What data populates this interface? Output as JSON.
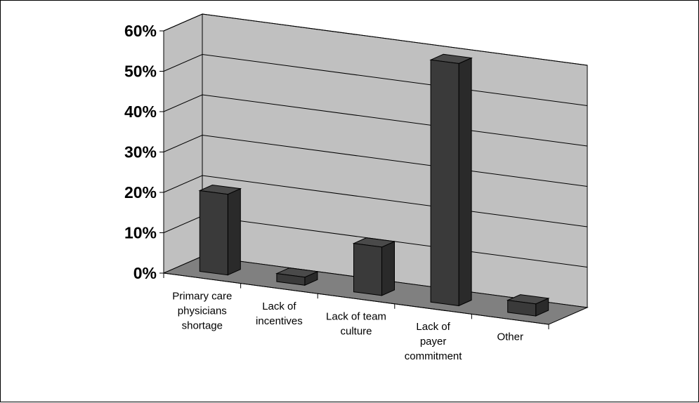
{
  "chart_data": {
    "type": "bar",
    "title": "",
    "xlabel": "",
    "ylabel": "",
    "ylim": [
      0,
      0.6
    ],
    "y_ticks": [
      "0%",
      "10%",
      "20%",
      "30%",
      "40%",
      "50%",
      "60%"
    ],
    "y_tick_values": [
      0,
      0.1,
      0.2,
      0.3,
      0.4,
      0.5,
      0.6
    ],
    "categories": [
      [
        "Primary care",
        "physicians",
        "shortage"
      ],
      [
        "Lack of",
        "incentives"
      ],
      [
        "Lack of team",
        "culture"
      ],
      [
        "Lack of",
        "payer",
        "commitment"
      ],
      [
        "Other"
      ]
    ],
    "values": [
      0.2,
      0.02,
      0.12,
      0.6,
      0.03
    ],
    "grid": true,
    "style": "3d",
    "colors": {
      "bar_front": "#3a3a3a",
      "bar_top": "#4a4a4a",
      "bar_side": "#2a2a2a",
      "wall": "#c0c0c0",
      "floor": "#808080"
    }
  }
}
